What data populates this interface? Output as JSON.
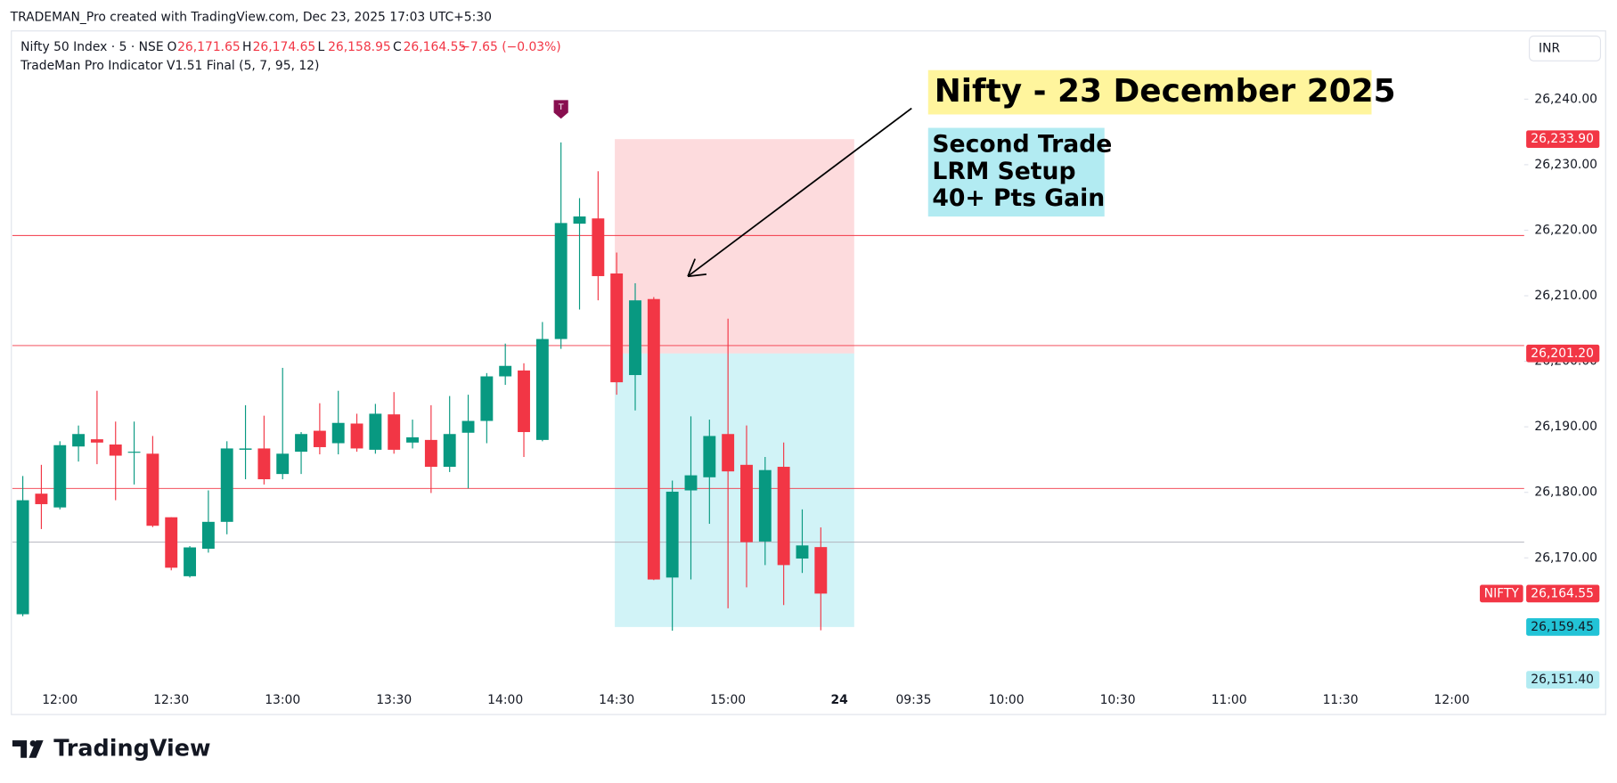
{
  "header": "TRADEMAN_Pro created with TradingView.com, Dec 23, 2025 17:03 UTC+5:30",
  "symbol": "Nifty 50 Index · 5 · NSE",
  "ohlc_legend": [
    {
      "key": "O",
      "value": "26,171.65"
    },
    {
      "key": "H",
      "value": "26,174.65"
    },
    {
      "key": "L",
      "value": "26,158.95"
    },
    {
      "key": "C",
      "value": "26,164.55"
    }
  ],
  "change": "−7.65 (−0.03%)",
  "indicator": "TradeMan Pro Indicator V1.51 Final (5, 7, 95, 12)",
  "currency": "INR",
  "brand": "TradingView",
  "chart_data": {
    "type": "candlestick",
    "up_color": "#089981",
    "down_color": "#f23645",
    "open": [
      26161.4,
      26179.8,
      26177.7,
      26187.0,
      26188.1,
      26187.3,
      26186.1,
      26185.9,
      26176.2,
      26167.2,
      26171.4,
      26175.5,
      26186.5,
      26186.7,
      26182.8,
      26186.2,
      26189.4,
      26187.5,
      26190.5,
      26186.5,
      26191.9,
      26187.6,
      26188.0,
      26183.9,
      26189.1,
      26190.9,
      26197.7,
      26198.6,
      26188.0,
      26203.4,
      26221.0,
      26221.8,
      26213.4,
      26197.9,
      26209.5,
      26167.0,
      26180.3,
      26182.3,
      26188.9,
      26184.2,
      26172.5,
      26183.9,
      26169.9,
      26171.65
    ],
    "high": [
      26182.5,
      26184.2,
      26187.8,
      26190.2,
      26195.5,
      26190.8,
      26190.8,
      26188.6,
      26176.2,
      26171.8,
      26180.3,
      26187.8,
      26193.3,
      26191.7,
      26199.0,
      26189.2,
      26193.6,
      26195.5,
      26192.0,
      26193.5,
      26195.3,
      26191.1,
      26193.3,
      26194.7,
      26194.9,
      26198.2,
      26202.7,
      26199.7,
      26206.0,
      26233.4,
      26224.9,
      26229.0,
      26216.6,
      26211.9,
      26209.8,
      26181.8,
      26191.6,
      26191.1,
      26206.5,
      26190.2,
      26185.4,
      26187.6,
      26177.4,
      26174.65
    ],
    "low": [
      26161.1,
      26174.4,
      26177.4,
      26184.7,
      26184.3,
      26178.8,
      26181.2,
      26174.7,
      26168.1,
      26167.0,
      26170.8,
      26173.6,
      26182.0,
      26181.2,
      26182.0,
      26182.8,
      26185.8,
      26185.8,
      26186.2,
      26185.9,
      26185.9,
      26186.7,
      26179.9,
      26183.1,
      26180.6,
      26187.5,
      26196.4,
      26185.4,
      26187.8,
      26201.9,
      26207.9,
      26209.3,
      26194.9,
      26192.5,
      26166.6,
      26158.9,
      26166.7,
      26175.2,
      26162.3,
      26165.5,
      26168.9,
      26162.8,
      26167.7,
      26158.95
    ],
    "close": [
      26178.8,
      26178.2,
      26187.2,
      26188.9,
      26187.6,
      26185.6,
      26186.2,
      26174.9,
      26168.5,
      26171.6,
      26175.5,
      26186.7,
      26186.7,
      26182.0,
      26185.9,
      26188.9,
      26186.9,
      26190.6,
      26186.7,
      26192.0,
      26186.5,
      26188.4,
      26183.9,
      26188.9,
      26190.9,
      26197.7,
      26199.3,
      26189.2,
      26203.4,
      26221.1,
      26222.1,
      26213.0,
      26196.8,
      26209.3,
      26166.7,
      26180.1,
      26182.6,
      26188.6,
      26183.2,
      26172.4,
      26183.4,
      26168.9,
      26171.9,
      26164.55
    ],
    "xlim": [
      -0.56,
      80.9
    ],
    "xticks": [
      {
        "value": 2,
        "label": "12:00"
      },
      {
        "value": 8,
        "label": "12:30"
      },
      {
        "value": 14,
        "label": "13:00"
      },
      {
        "value": 20,
        "label": "13:30"
      },
      {
        "value": 26,
        "label": "14:00"
      },
      {
        "value": 32,
        "label": "14:30"
      },
      {
        "value": 38,
        "label": "15:00"
      },
      {
        "value": 44,
        "label": "24"
      },
      {
        "value": 48,
        "label": "09:35"
      },
      {
        "value": 53,
        "label": "10:00"
      },
      {
        "value": 59,
        "label": "10:30"
      },
      {
        "value": 65,
        "label": "11:00"
      },
      {
        "value": 71,
        "label": "11:30"
      },
      {
        "value": 77,
        "label": "12:00"
      }
    ],
    "ylim": [
      26150.5,
      26250.1
    ],
    "yticks": [
      {
        "value": 26170,
        "label": "26,170.00"
      },
      {
        "value": 26180,
        "label": "26,180.00"
      },
      {
        "value": 26190,
        "label": "26,190.00"
      },
      {
        "value": 26200,
        "label": "26,200.00"
      },
      {
        "value": 26210,
        "label": "26,210.00"
      },
      {
        "value": 26220,
        "label": "26,220.00"
      },
      {
        "value": 26230,
        "label": "26,230.00"
      },
      {
        "value": 26240,
        "label": "26,240.00"
      }
    ],
    "levels": [
      {
        "value": 26219.2,
        "color": "#f23645"
      },
      {
        "value": 26202.4,
        "color": "#f23645"
      },
      {
        "value": 26180.6,
        "color": "#f23645"
      },
      {
        "value": 26172.4,
        "color": "#b2b5be"
      }
    ],
    "position": {
      "start": 31.9,
      "end": 44.8,
      "stop": 26233.9,
      "stop_label": "26,233.90",
      "entry": 26201.2,
      "entry_label": "26,201.20",
      "target": 26159.45,
      "target_label": "26,159.45"
    },
    "last": {
      "name": "NIFTY",
      "value": 26164.55,
      "label": "26,164.55"
    },
    "extra_price": {
      "value": 26151.4,
      "label": "26,151.40"
    },
    "signal": {
      "index": 29,
      "label": "T"
    },
    "title": "Nifty - 23 December 2025",
    "note": [
      "Second Trade",
      "LRM Setup",
      "40+ Pts Gain"
    ]
  }
}
